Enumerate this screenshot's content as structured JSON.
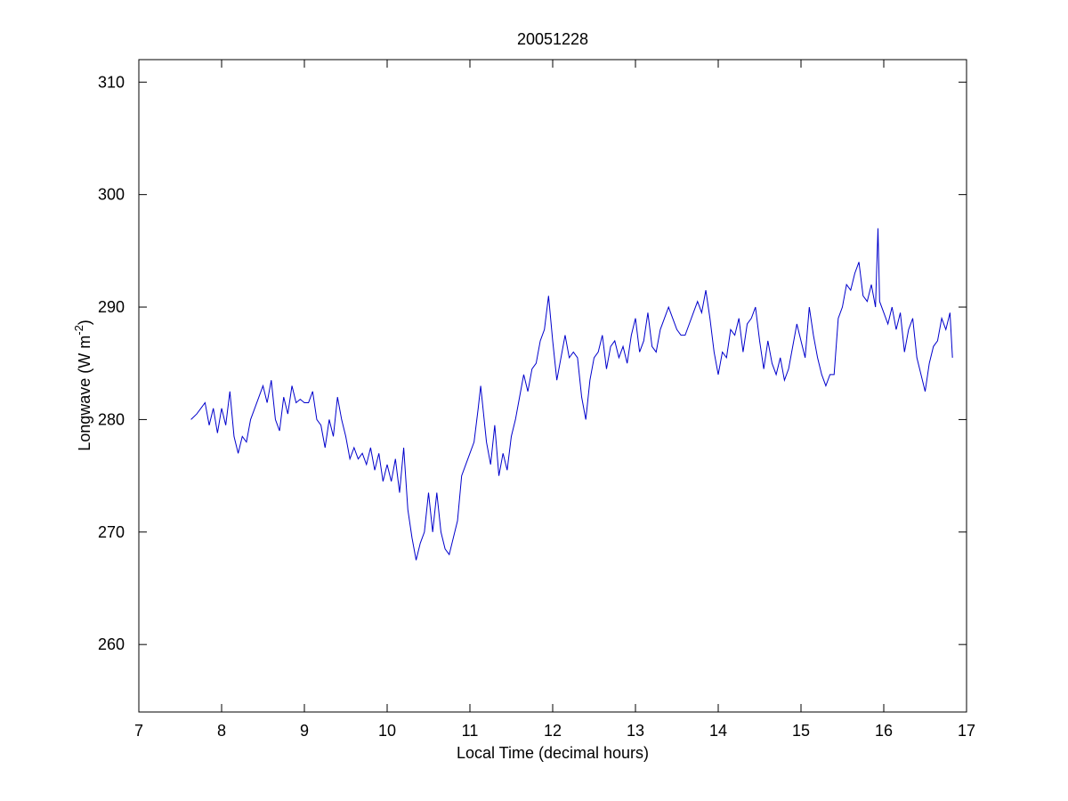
{
  "chart_data": {
    "type": "line",
    "title": "20051228",
    "xlabel": "Local Time (decimal hours)",
    "ylabel": "Longwave (W m",
    "ylabel_sup": "-2",
    "ylabel_end": ")",
    "xlim": [
      7,
      17
    ],
    "xticks": [
      7,
      8,
      9,
      10,
      11,
      12,
      13,
      14,
      15,
      16,
      17
    ],
    "ylim": [
      254,
      312
    ],
    "yticks": [
      260,
      270,
      280,
      290,
      300,
      310
    ],
    "grid": false,
    "series": [
      {
        "color": "#0000cc",
        "x": [
          7.63,
          7.7,
          7.8,
          7.85,
          7.9,
          7.95,
          8.0,
          8.05,
          8.1,
          8.15,
          8.2,
          8.25,
          8.3,
          8.35,
          8.4,
          8.45,
          8.5,
          8.55,
          8.6,
          8.65,
          8.7,
          8.75,
          8.8,
          8.85,
          8.9,
          8.95,
          9.0,
          9.05,
          9.1,
          9.15,
          9.2,
          9.25,
          9.3,
          9.35,
          9.4,
          9.45,
          9.5,
          9.55,
          9.6,
          9.65,
          9.7,
          9.75,
          9.8,
          9.85,
          9.9,
          9.95,
          10.0,
          10.05,
          10.1,
          10.15,
          10.2,
          10.25,
          10.3,
          10.35,
          10.4,
          10.45,
          10.5,
          10.55,
          10.6,
          10.65,
          10.7,
          10.75,
          10.8,
          10.85,
          10.9,
          10.95,
          11.0,
          11.05,
          11.1,
          11.13,
          11.2,
          11.25,
          11.3,
          11.35,
          11.4,
          11.45,
          11.5,
          11.55,
          11.6,
          11.65,
          11.7,
          11.75,
          11.8,
          11.85,
          11.9,
          11.95,
          12.0,
          12.05,
          12.1,
          12.15,
          12.2,
          12.25,
          12.3,
          12.35,
          12.4,
          12.45,
          12.5,
          12.55,
          12.6,
          12.65,
          12.7,
          12.75,
          12.8,
          12.85,
          12.9,
          12.95,
          13.0,
          13.05,
          13.1,
          13.15,
          13.2,
          13.25,
          13.3,
          13.35,
          13.4,
          13.45,
          13.5,
          13.55,
          13.6,
          13.65,
          13.7,
          13.75,
          13.8,
          13.85,
          13.9,
          13.95,
          14.0,
          14.05,
          14.1,
          14.15,
          14.2,
          14.25,
          14.3,
          14.35,
          14.4,
          14.45,
          14.5,
          14.55,
          14.6,
          14.65,
          14.7,
          14.75,
          14.8,
          14.85,
          14.9,
          14.95,
          15.0,
          15.05,
          15.1,
          15.15,
          15.2,
          15.25,
          15.3,
          15.35,
          15.4,
          15.45,
          15.5,
          15.55,
          15.6,
          15.65,
          15.7,
          15.75,
          15.8,
          15.85,
          15.9,
          15.93,
          15.95,
          16.0,
          16.05,
          16.1,
          16.15,
          16.2,
          16.25,
          16.3,
          16.35,
          16.4,
          16.45,
          16.5,
          16.55,
          16.6,
          16.65,
          16.7,
          16.75,
          16.8,
          16.83
        ],
        "values": [
          280,
          280.5,
          281.5,
          279.5,
          281,
          278.8,
          281,
          279.5,
          282.5,
          278.5,
          277,
          278.5,
          278,
          280,
          281,
          282,
          283,
          281.5,
          283.5,
          280,
          279,
          282,
          280.5,
          283,
          281.5,
          281.8,
          281.5,
          281.5,
          282.5,
          280,
          279.5,
          277.5,
          280,
          278.5,
          282,
          280,
          278.5,
          276.5,
          277.5,
          276.5,
          277,
          276,
          277.5,
          275.5,
          277,
          274.5,
          276,
          274.5,
          276.5,
          273.5,
          277.5,
          272,
          269.5,
          267.5,
          269,
          270,
          273.5,
          270,
          273.5,
          270,
          268.5,
          268,
          269.5,
          271,
          275,
          276,
          277,
          278,
          281,
          283,
          278,
          276,
          279.5,
          275,
          277,
          275.5,
          278.5,
          280,
          282,
          284,
          282.5,
          284.5,
          285,
          287,
          288,
          291,
          287,
          283.5,
          285.5,
          287.5,
          285.5,
          286,
          285.5,
          282,
          280,
          283.5,
          285.5,
          286,
          287.5,
          284.5,
          286.5,
          287,
          285.5,
          286.5,
          285,
          287.5,
          289,
          286,
          287,
          289.5,
          286.5,
          286,
          288,
          289,
          290,
          289,
          288,
          287.5,
          287.5,
          288.5,
          289.5,
          290.5,
          289.5,
          291.5,
          289,
          286,
          284,
          286,
          285.5,
          288,
          287.5,
          289,
          286,
          288.5,
          289,
          290,
          287,
          284.5,
          287,
          285,
          284,
          285.5,
          283.5,
          284.5,
          286.5,
          288.5,
          287,
          285.5,
          290,
          287.5,
          285.5,
          284,
          283,
          284,
          284,
          289,
          290,
          292,
          291.5,
          293,
          294,
          291,
          290.5,
          292,
          290,
          297,
          290.5,
          289.5,
          288.5,
          290,
          288,
          289.5,
          286,
          288,
          289,
          285.5,
          284,
          282.5,
          285,
          286.5,
          287,
          289,
          288,
          289.5,
          285.5
        ]
      }
    ]
  }
}
